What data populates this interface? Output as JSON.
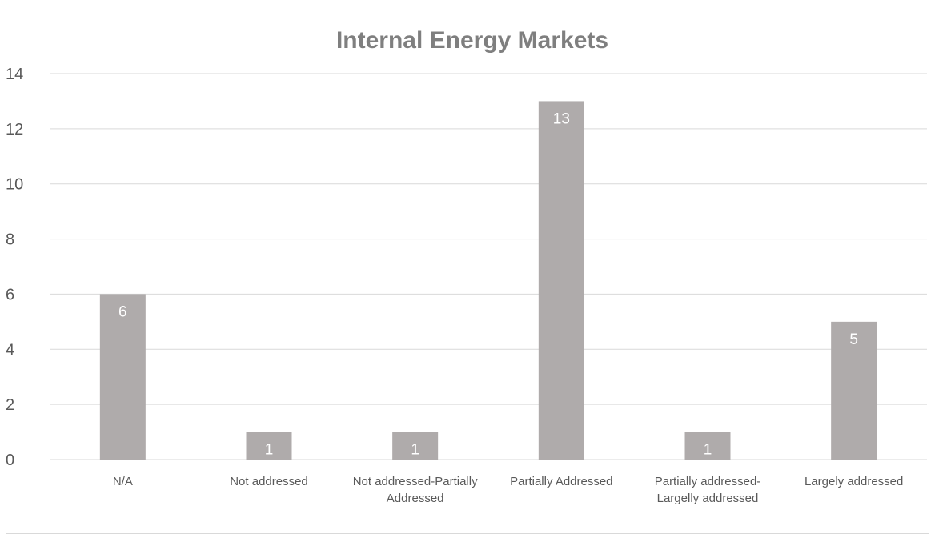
{
  "chart_data": {
    "type": "bar",
    "title": "Internal Energy Markets",
    "categories": [
      [
        "N/A"
      ],
      [
        "Not addressed"
      ],
      [
        "Not addressed-Partially",
        "Addressed"
      ],
      [
        "Partially Addressed"
      ],
      [
        "Partially addressed-",
        "Largelly addressed"
      ],
      [
        "Largely addressed"
      ]
    ],
    "values": [
      6,
      1,
      1,
      13,
      1,
      5
    ],
    "ylim": [
      0,
      14
    ],
    "yticks": [
      0,
      2,
      4,
      6,
      8,
      10,
      12,
      14
    ],
    "xlabel": "",
    "ylabel": "",
    "grid": true,
    "legend": "none",
    "bar_color": "#afabab",
    "title_color": "#7f7f7f",
    "label_color": "#595959",
    "gridline_color": "#d9d9d9"
  }
}
